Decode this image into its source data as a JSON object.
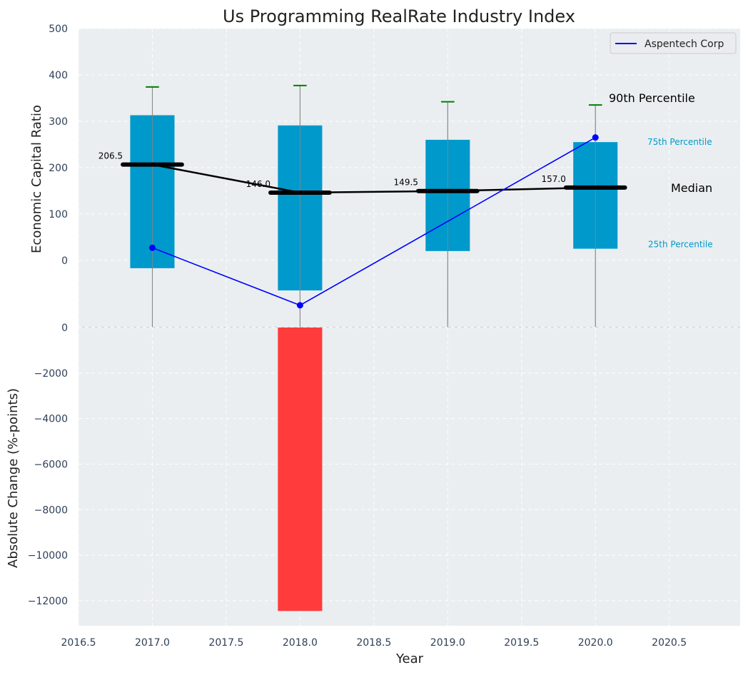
{
  "chart_data": {
    "title": "Us Programming RealRate Industry Index",
    "xlabel": "Year",
    "x_ticks": [
      "2016.5",
      "2017.0",
      "2017.5",
      "2018.0",
      "2018.5",
      "2019.0",
      "2019.5",
      "2020.0",
      "2020.5"
    ],
    "xlim": [
      2016.5,
      2020.98
    ],
    "grid": true,
    "legend_position": "top-right",
    "top_panel": {
      "type": "box-percentile",
      "ylabel": "Economic Capital Ratio",
      "ylim": [
        -145,
        500
      ],
      "y_ticks": [
        "0",
        "100",
        "200",
        "300",
        "400",
        "500"
      ],
      "years": [
        2017,
        2018,
        2019,
        2020
      ],
      "p25": [
        -17,
        -65,
        20,
        25
      ],
      "p75": [
        313,
        291,
        260,
        255
      ],
      "p90": [
        374,
        377,
        342,
        335
      ],
      "whisker_low": [
        -145,
        -145,
        -145,
        -145
      ],
      "median": [
        206.5,
        146.0,
        149.5,
        157.0
      ],
      "median_labels": [
        "206.5",
        "146.0",
        "149.5",
        "157.0"
      ],
      "company": {
        "name": "Aspentech Corp",
        "values": [
          27,
          -97,
          null,
          265
        ]
      },
      "annotations": {
        "p90": "90th Percentile",
        "p75": "75th Percentile",
        "median": "Median",
        "p25": "25th Percentile"
      },
      "colors": {
        "box": "#0099cc",
        "whisker": "#888888",
        "p90_cap": "#008000",
        "median": "#000000",
        "company": "#0000ff",
        "p75_text": "#0099cc"
      }
    },
    "bottom_panel": {
      "type": "bar",
      "ylabel": "Absolute Change (%-points)",
      "ylim": [
        -13100,
        0
      ],
      "y_ticks": [
        "0",
        "−2000",
        "−4000",
        "−6000",
        "−8000",
        "−10000",
        "−12000"
      ],
      "x": [
        2018
      ],
      "values": [
        -12450
      ],
      "color": "#ff3b3b"
    }
  }
}
